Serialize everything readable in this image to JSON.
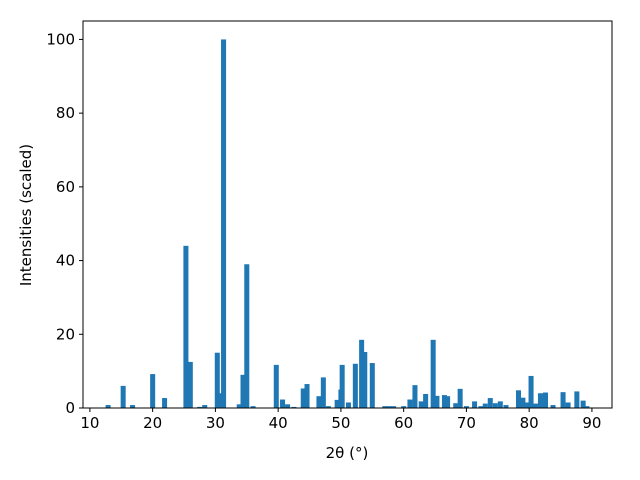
{
  "chart_data": {
    "type": "bar",
    "x_label": "2θ (°)",
    "y_label": "Intensities (scaled)",
    "color": "#1f77b4",
    "x": [
      12.9,
      15.3,
      16.8,
      20.0,
      21.9,
      25.3,
      26.0,
      27.5,
      28.3,
      30.3,
      30.8,
      31.3,
      33.8,
      34.4,
      35.0,
      36.0,
      39.7,
      40.7,
      41.5,
      42.5,
      44.0,
      44.6,
      46.5,
      47.2,
      48.0,
      49.4,
      50.0,
      50.2,
      51.2,
      52.3,
      53.3,
      53.8,
      55.0,
      57.0,
      57.7,
      58.4,
      60.0,
      61.0,
      61.8,
      62.8,
      63.5,
      64.7,
      65.3,
      66.5,
      67.0,
      68.3,
      69.0,
      70.0,
      71.3,
      72.3,
      73.0,
      73.8,
      74.6,
      75.4,
      76.3,
      78.3,
      79.0,
      79.6,
      80.3,
      81.0,
      81.8,
      82.6,
      83.8,
      85.4,
      86.2,
      87.6,
      88.6,
      89.2
    ],
    "values": [
      0.8,
      6,
      0.8,
      9.2,
      2.7,
      44,
      12.5,
      0.3,
      0.8,
      15,
      4,
      100,
      1,
      9,
      39,
      0.5,
      11.7,
      2.3,
      1,
      0.3,
      5.3,
      6.5,
      3.2,
      8.3,
      0.5,
      2.2,
      5,
      11.7,
      1.5,
      12,
      18.5,
      15.2,
      12.2,
      0.5,
      0.5,
      0.5,
      0.5,
      2.3,
      6.2,
      1.8,
      3.8,
      18.5,
      3.3,
      3.5,
      3.2,
      1.3,
      5.2,
      0.5,
      1.8,
      0.5,
      1.2,
      2.7,
      1.3,
      1.8,
      0.8,
      4.8,
      2.8,
      1.5,
      8.7,
      1.2,
      4,
      4.2,
      0.8,
      4.3,
      1.5,
      4.5,
      2,
      0.5
    ],
    "xlim": [
      8.9,
      93.2
    ],
    "ylim": [
      0,
      105
    ],
    "xticks": [
      10,
      20,
      30,
      40,
      50,
      60,
      70,
      80,
      90
    ],
    "yticks": [
      0,
      20,
      40,
      60,
      80,
      100
    ]
  }
}
